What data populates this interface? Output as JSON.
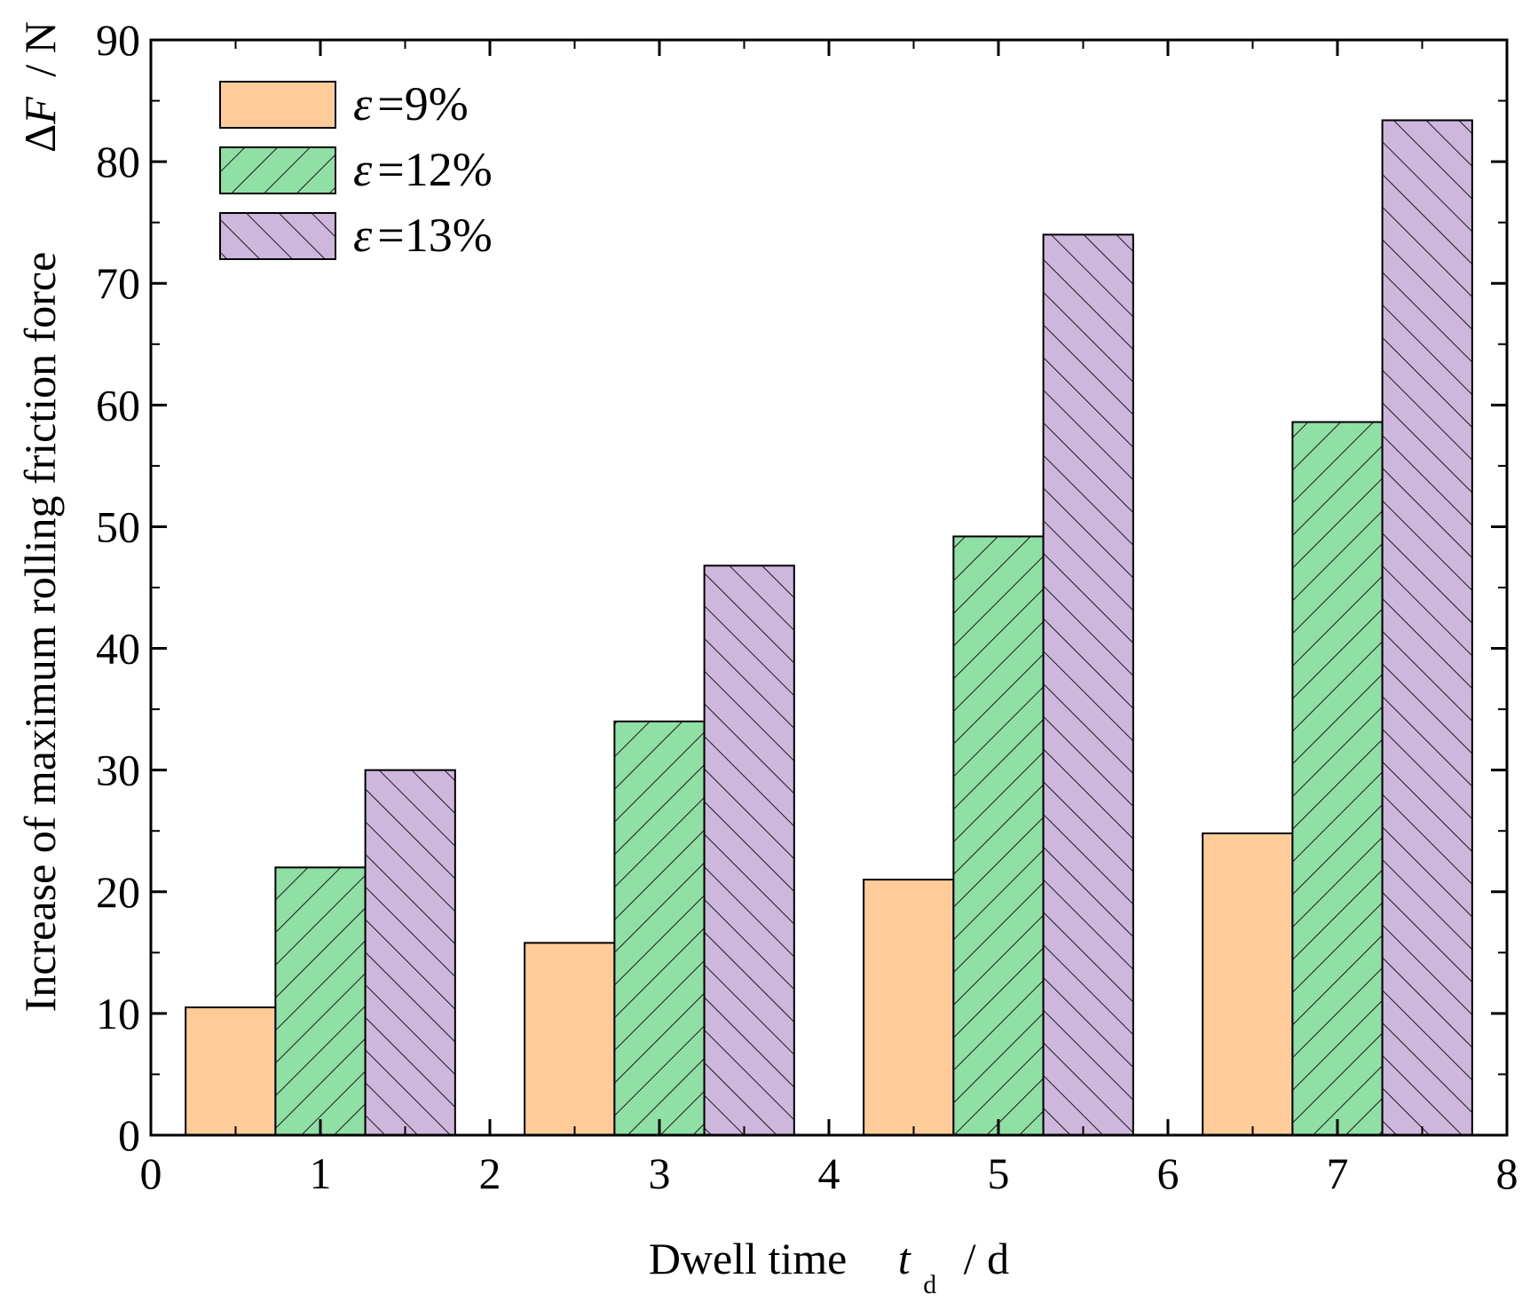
{
  "chart_data": {
    "type": "bar",
    "x": [
      1,
      3,
      5,
      7
    ],
    "series": [
      {
        "name": "9%",
        "values": [
          10.5,
          15.8,
          21.0,
          24.8
        ],
        "color": "#ffcc99",
        "pattern": "none"
      },
      {
        "name": "12%",
        "values": [
          22.0,
          34.0,
          49.2,
          58.6
        ],
        "color": "#90dfa5",
        "pattern": "forward-hatch"
      },
      {
        "name": "13%",
        "values": [
          30.0,
          46.8,
          74.0,
          83.4
        ],
        "color": "#cdb7dd",
        "pattern": "back-hatch"
      }
    ],
    "legend_symbol": "ε",
    "legend_eq": "=",
    "legend_position": "top-left",
    "xlim": [
      0,
      8
    ],
    "ylim": [
      0,
      90
    ],
    "xticks": [
      0,
      1,
      2,
      3,
      4,
      5,
      6,
      7,
      8
    ],
    "yticks": [
      0,
      10,
      20,
      30,
      40,
      50,
      60,
      70,
      80,
      90
    ],
    "xlabel": {
      "prefix": "Dwell time",
      "symbol": "t",
      "subscript": "d",
      "unit": "/ d"
    },
    "ylabel": {
      "text": "Increase of maximum rolling friction force",
      "delta": "Δ",
      "symbol": "F",
      "unit": "/ N"
    },
    "grid": false
  }
}
